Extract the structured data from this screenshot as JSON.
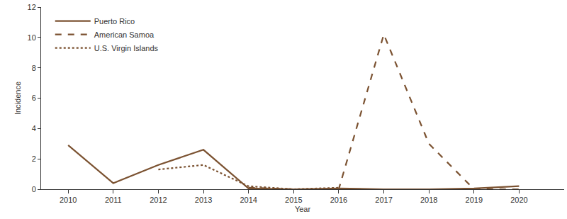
{
  "chart_data": {
    "type": "line",
    "x_label": "Year",
    "y_label": "Incidence",
    "x": [
      2010,
      2011,
      2012,
      2013,
      2014,
      2015,
      2016,
      2017,
      2018,
      2019,
      2020
    ],
    "series": [
      {
        "name": "Puerto Rico",
        "color": "#7b5231",
        "line_style": "solid",
        "values": [
          2.9,
          0.4,
          1.6,
          2.6,
          0.05,
          0.0,
          0.05,
          0.0,
          0.0,
          0.05,
          0.2
        ]
      },
      {
        "name": "American Samoa",
        "color": "#7b5231",
        "line_style": "dash",
        "values": [
          null,
          null,
          null,
          null,
          0.1,
          0.0,
          0.0,
          10.2,
          3.0,
          0.0,
          0.0
        ]
      },
      {
        "name": "U.S. Virgin Islands",
        "color": "#7b5231",
        "line_style": "dot",
        "values": [
          null,
          null,
          1.3,
          1.6,
          0.2,
          0.0,
          0.1,
          null,
          null,
          null,
          null
        ]
      }
    ],
    "xlim": [
      2009.4,
      2021
    ],
    "xticks": [
      2010,
      2011,
      2012,
      2013,
      2014,
      2015,
      2016,
      2017,
      2018,
      2019,
      2020
    ],
    "ylim": [
      0,
      12
    ],
    "yticks": [
      0,
      2,
      4,
      6,
      8,
      10,
      12
    ],
    "grid": false,
    "legend": "upper left"
  }
}
